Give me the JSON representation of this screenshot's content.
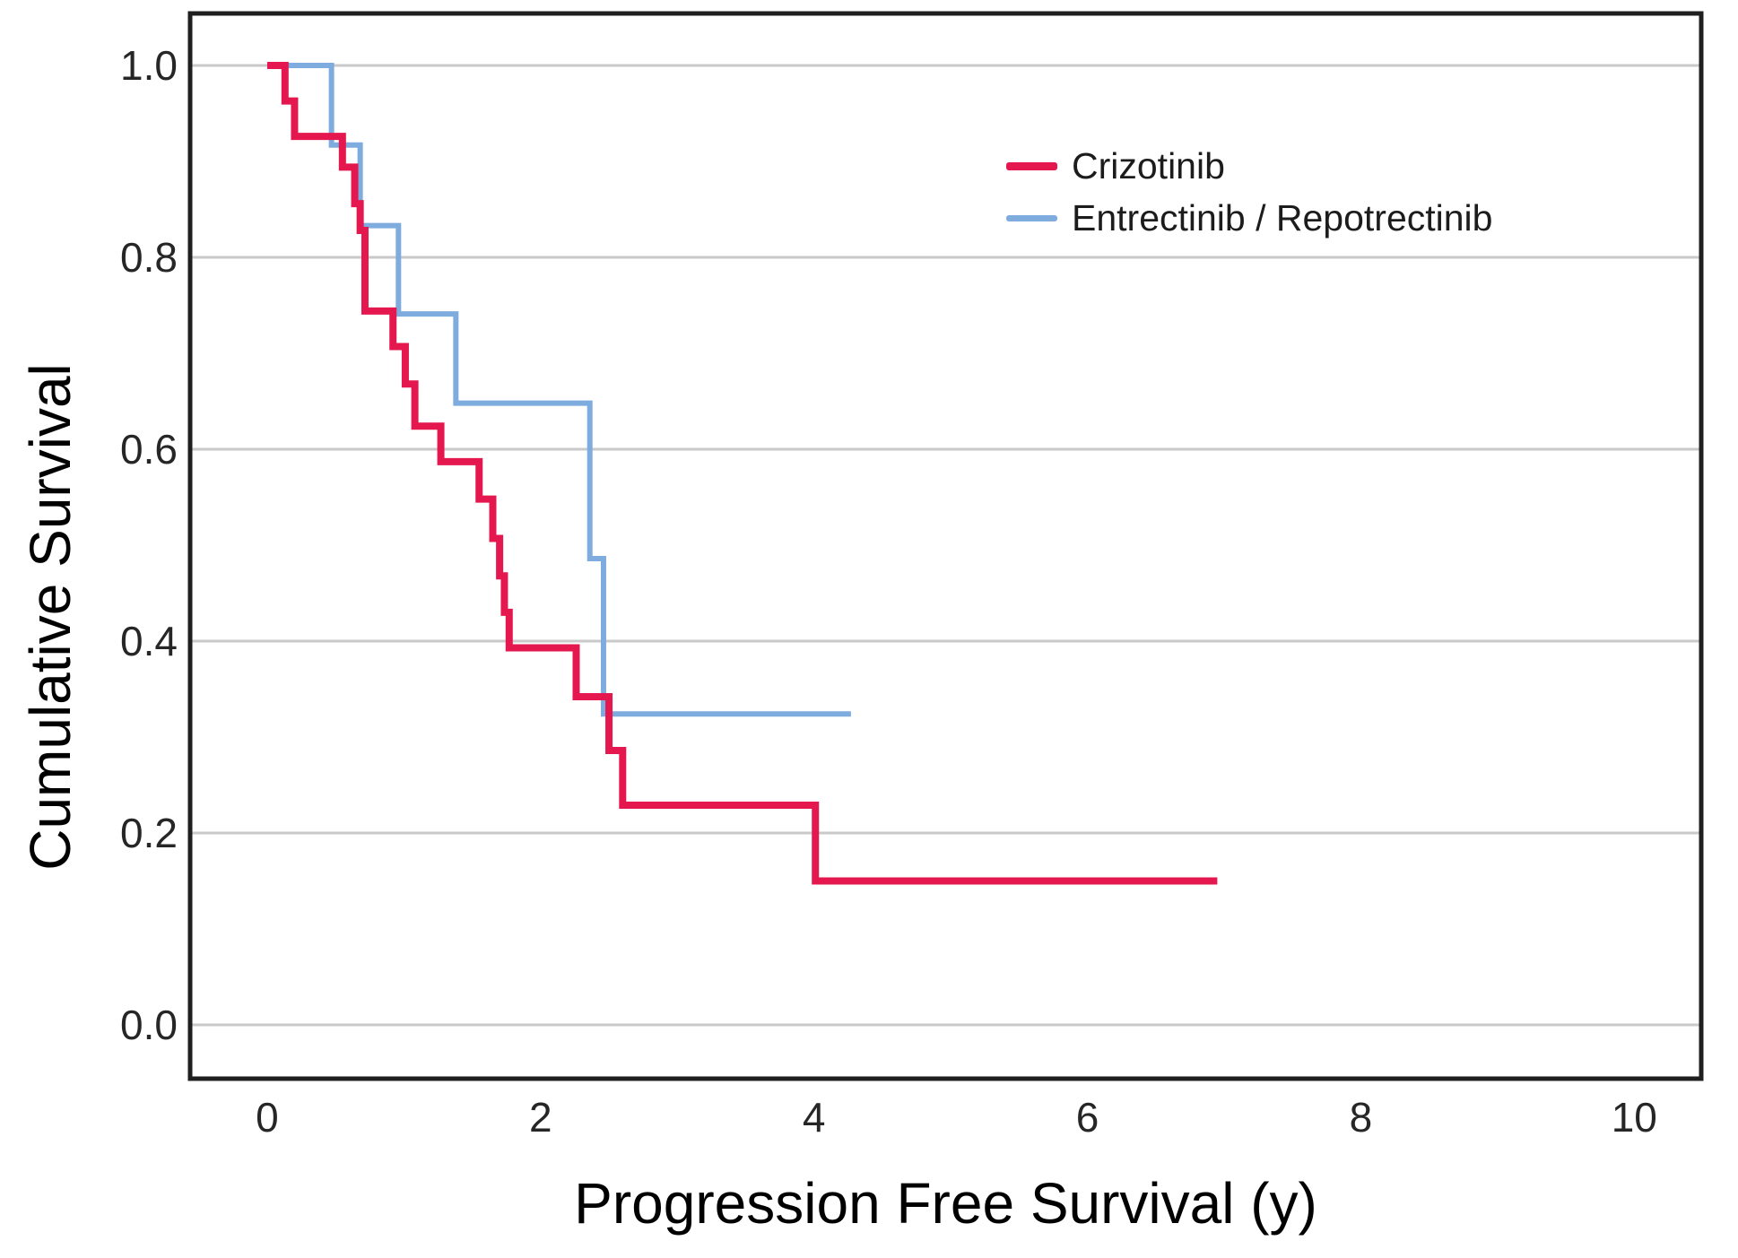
{
  "chart_data": {
    "type": "line",
    "subtype": "kaplan-meier-step",
    "title": "",
    "xlabel": "Progression Free Survival (y)",
    "ylabel": "Cumulative Survival",
    "x_ticks": [
      0,
      2,
      4,
      6,
      8,
      10
    ],
    "x_tick_labels": [
      "0",
      "2",
      "4",
      "6",
      "8",
      "10"
    ],
    "y_ticks": [
      0.0,
      0.2,
      0.4,
      0.6,
      0.8,
      1.0
    ],
    "y_tick_labels": [
      "0.0",
      "0.2",
      "0.4",
      "0.6",
      "0.8",
      "1.0"
    ],
    "xlim": [
      -0.564,
      10.49
    ],
    "ylim": [
      -0.0561,
      1.0542
    ],
    "grid": "horizontal",
    "legend_position": "upper-right-inside",
    "axis_color": "#1f1f1f",
    "grid_color": "#c9c9c9",
    "tick_label_color": "#262626",
    "series": [
      {
        "name": "Crizotinib",
        "color": "#E4174E",
        "line_width": 8,
        "points": [
          [
            0,
            1.0
          ],
          [
            0.13,
            0.963
          ],
          [
            0.2,
            0.926
          ],
          [
            0.55,
            0.894
          ],
          [
            0.64,
            0.856
          ],
          [
            0.68,
            0.828
          ],
          [
            0.715,
            0.744
          ],
          [
            0.92,
            0.707
          ],
          [
            1.01,
            0.668
          ],
          [
            1.08,
            0.624
          ],
          [
            1.27,
            0.587
          ],
          [
            1.55,
            0.548
          ],
          [
            1.65,
            0.507
          ],
          [
            1.7,
            0.468
          ],
          [
            1.735,
            0.43
          ],
          [
            1.77,
            0.393
          ],
          [
            2.26,
            0.342
          ],
          [
            2.5,
            0.286
          ],
          [
            2.6,
            0.229
          ],
          [
            4.01,
            0.15
          ]
        ],
        "end_x": 6.95
      },
      {
        "name": "Entrectinib / Repotrectinib",
        "color": "#7FACDE",
        "line_width": 6,
        "points": [
          [
            0,
            1.0
          ],
          [
            0.47,
            0.917
          ],
          [
            0.68,
            0.833
          ],
          [
            0.96,
            0.741
          ],
          [
            1.38,
            0.648
          ],
          [
            2.36,
            0.486
          ],
          [
            2.46,
            0.324
          ]
        ],
        "end_x": 4.27
      }
    ]
  }
}
